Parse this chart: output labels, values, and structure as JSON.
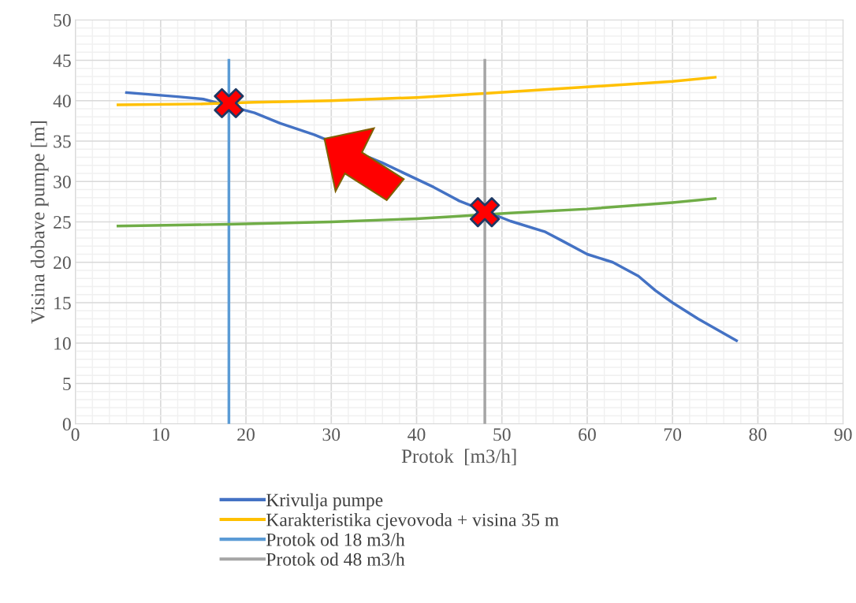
{
  "chart_data": {
    "type": "line",
    "xlabel": "Protok  [m3/h]",
    "ylabel": "Visina dobave pumpe [m]",
    "xlim": [
      0,
      90
    ],
    "xticks": [
      0,
      10,
      20,
      30,
      40,
      50,
      60,
      70,
      80,
      90
    ],
    "ylim": [
      0,
      50
    ],
    "yticks": [
      0,
      5,
      10,
      15,
      20,
      25,
      30,
      35,
      40,
      45,
      50
    ],
    "grid": true,
    "legend": "bottom",
    "marker": "none",
    "series": [
      {
        "name": "Krivulja pumpe",
        "color": "#4472c4",
        "x": [
          6,
          12,
          15,
          21,
          24,
          28,
          36,
          42,
          45,
          51,
          55,
          57,
          60,
          63,
          66,
          68,
          70,
          73,
          77.5
        ],
        "values": [
          41,
          40.5,
          40.2,
          38.5,
          37.2,
          35.8,
          32.3,
          29.3,
          27.6,
          25.1,
          23.8,
          22.7,
          21,
          20,
          18.3,
          16.5,
          15,
          13,
          10.3
        ]
      },
      {
        "name": "Karakteristika cjevovoda + visina 35 m",
        "color": "#ffc000",
        "x": [
          5,
          15,
          21,
          30,
          40,
          48,
          60,
          70,
          75
        ],
        "values": [
          39.5,
          39.6,
          39.8,
          40,
          40.4,
          40.9,
          41.7,
          42.4,
          42.9
        ]
      },
      {
        "name": "Protok od 18 m3/h",
        "color": "#5b9bd5",
        "x": [
          18,
          18
        ],
        "values": [
          0,
          45
        ]
      },
      {
        "name": "Protok od 48 m3/h",
        "color": "#a5a5a5",
        "x": [
          48,
          48
        ],
        "values": [
          0,
          45
        ]
      },
      {
        "color": "#70ad47",
        "x": [
          5,
          18,
          30,
          40,
          45,
          51,
          60,
          70,
          75
        ],
        "values": [
          24.5,
          24.7,
          25,
          25.4,
          25.7,
          26.1,
          26.6,
          27.4,
          27.9
        ]
      },
      {
        "type": "scatter",
        "marker": "cross",
        "color": "#ff0000",
        "x": [
          18,
          48
        ],
        "values": [
          39.7,
          26.2
        ]
      }
    ]
  }
}
